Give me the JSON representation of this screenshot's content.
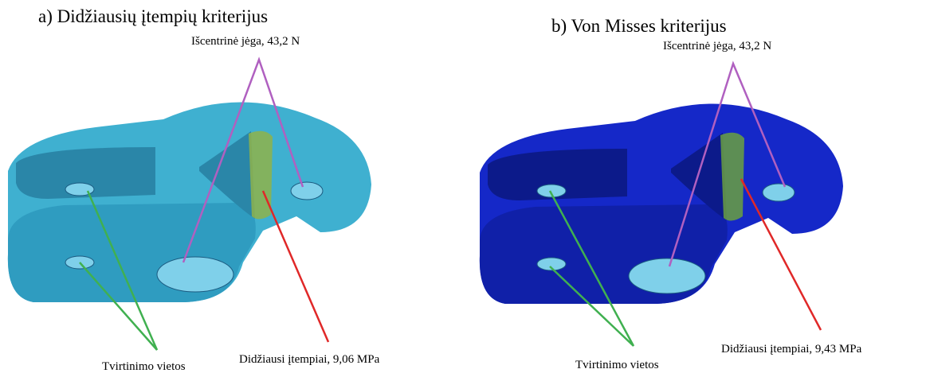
{
  "panels": [
    {
      "title": "a) Didžiausių įtempių kriterijus",
      "force_label": "Išcentrinė jėga, 43,2 N",
      "fixture_label": "Tvirtinimo vietos",
      "stress_label": "Didžiausi įtempiai, 9,06 MPa"
    },
    {
      "title": "b) Von Misses kriterijus",
      "force_label": "Išcentrinė jėga, 43,2 N",
      "fixture_label": "Tvirtinimo vietos",
      "stress_label": "Didžiausi įtempiai, 9,43 MPa"
    }
  ]
}
